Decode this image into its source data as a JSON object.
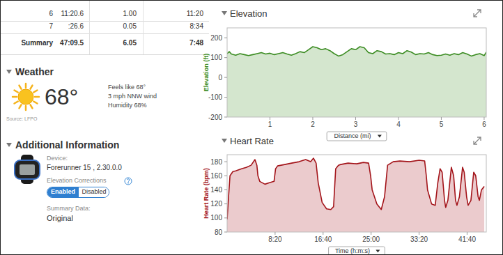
{
  "table": {
    "rows": [
      [
        "6",
        "11:20.6",
        "1.00",
        "11:20"
      ],
      [
        "7",
        ":26.6",
        "0.05",
        "8:34"
      ],
      [
        "Summary",
        "47:09.5",
        "6.05",
        "7:48"
      ]
    ]
  },
  "weather": {
    "title": "Weather",
    "temperature": "68°",
    "details": [
      "Feels like 68°",
      "3 mph NNW wind",
      "Humidity 68%"
    ],
    "source": "Source: LFPO"
  },
  "additional": {
    "title": "Additional Information",
    "device_label": "Device:",
    "device": "Forerunner 15 , 2.30.0.0",
    "elevation_corrections_label": "Elevation Corrections",
    "toggle": [
      "Enabled",
      "Disabled"
    ],
    "summary_label": "Summary Data:",
    "summary": "Original"
  },
  "chart_data": [
    {
      "type": "area",
      "title": "Elevation",
      "y_label": "Elevation (ft)",
      "x_label": "Distance (mi)",
      "color": "#3b8c22",
      "grid": false,
      "xlim": [
        0,
        6.05
      ],
      "xticks": [
        1,
        2,
        3,
        4,
        5,
        6
      ],
      "ylim": [
        -200,
        250
      ],
      "yticks": [
        -200,
        -100,
        0,
        100,
        200
      ],
      "x": [
        0,
        0.05,
        0.1,
        0.2,
        0.3,
        0.4,
        0.5,
        0.6,
        0.7,
        0.8,
        0.9,
        1,
        1.1,
        1.2,
        1.3,
        1.4,
        1.5,
        1.6,
        1.7,
        1.8,
        1.9,
        2,
        2.1,
        2.2,
        2.3,
        2.4,
        2.5,
        2.6,
        2.7,
        2.8,
        2.9,
        3,
        3.1,
        3.2,
        3.3,
        3.4,
        3.5,
        3.6,
        3.7,
        3.8,
        3.9,
        4,
        4.1,
        4.2,
        4.3,
        4.4,
        4.5,
        4.6,
        4.7,
        4.8,
        4.9,
        5,
        5.1,
        5.2,
        5.3,
        5.4,
        5.5,
        5.6,
        5.7,
        5.8,
        5.9,
        6,
        6.05
      ],
      "values": [
        120,
        130,
        118,
        112,
        120,
        115,
        110,
        115,
        120,
        125,
        118,
        122,
        115,
        120,
        125,
        118,
        112,
        120,
        130,
        125,
        140,
        155,
        150,
        140,
        145,
        135,
        120,
        108,
        115,
        130,
        145,
        140,
        155,
        150,
        125,
        120,
        135,
        130,
        118,
        120,
        115,
        125,
        120,
        135,
        128,
        115,
        120,
        118,
        125,
        115,
        110,
        112,
        118,
        112,
        120,
        115,
        125,
        118,
        108,
        115,
        120,
        110,
        128
      ]
    },
    {
      "type": "area",
      "title": "Heart Rate",
      "y_label": "Heart Rate (bpm)",
      "x_label": "Time (h:m:s)",
      "color": "#a3141a",
      "grid": false,
      "xlim": [
        0,
        2700
      ],
      "xticks": [
        {
          "value": 500,
          "label": "8:20"
        },
        {
          "value": 1000,
          "label": "16:40"
        },
        {
          "value": 1500,
          "label": "25:00"
        },
        {
          "value": 2000,
          "label": "33:20"
        },
        {
          "value": 2500,
          "label": "41:40"
        }
      ],
      "ylim": [
        80,
        190
      ],
      "yticks": [
        80,
        100,
        120,
        140,
        160,
        180
      ],
      "x": [
        0,
        15,
        30,
        60,
        90,
        150,
        200,
        250,
        290,
        310,
        321,
        340,
        394,
        440,
        489,
        505,
        526,
        600,
        672,
        750,
        818,
        870,
        900,
        927,
        949,
        990,
        1036,
        1080,
        1109,
        1131,
        1160,
        1182,
        1260,
        1350,
        1420,
        1474,
        1495,
        1511,
        1560,
        1606,
        1640,
        1672,
        1730,
        1800,
        1900,
        2000,
        2058,
        2075,
        2088,
        2130,
        2168,
        2195,
        2219,
        2240,
        2265,
        2277,
        2300,
        2336,
        2360,
        2380,
        2394,
        2420,
        2453,
        2470,
        2495,
        2511,
        2540,
        2569,
        2590,
        2615,
        2628,
        2650,
        2679
      ],
      "values": [
        98,
        130,
        160,
        166,
        167,
        170,
        172,
        175,
        183,
        175,
        160,
        152,
        148,
        150,
        152,
        170,
        174,
        176,
        178,
        180,
        183,
        180,
        185,
        178,
        150,
        122,
        113,
        112,
        116,
        170,
        175,
        176,
        178,
        177,
        179,
        178,
        160,
        140,
        120,
        112,
        130,
        175,
        180,
        181,
        180,
        182,
        181,
        160,
        140,
        120,
        118,
        150,
        170,
        165,
        125,
        115,
        125,
        172,
        160,
        125,
        118,
        130,
        172,
        165,
        130,
        118,
        125,
        165,
        160,
        130,
        125,
        140,
        145
      ]
    }
  ]
}
